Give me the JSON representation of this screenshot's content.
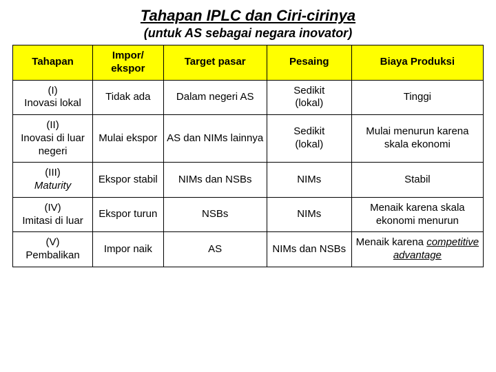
{
  "title": "Tahapan IPLC dan Ciri-cirinya",
  "subtitle": "(untuk AS sebagai negara inovator)",
  "table": {
    "header_bg": "#ffff00",
    "col_widths_pct": [
      17,
      15,
      22,
      18,
      28
    ],
    "columns": [
      "Tahapan",
      "Impor/ ekspor",
      "Target pasar",
      "Pesaing",
      "Biaya Produksi"
    ],
    "rows": [
      {
        "stage_roman": "(I)",
        "stage_name": "Inovasi lokal",
        "impor_ekspor": "Tidak ada",
        "target": "Dalam negeri AS",
        "pesaing_line1": "Sedikit",
        "pesaing_line2": "(lokal)",
        "biaya": "Tinggi"
      },
      {
        "stage_roman": "(II)",
        "stage_name": "Inovasi di luar negeri",
        "impor_ekspor": "Mulai ekspor",
        "target": "AS dan NIMs lainnya",
        "pesaing_line1": "Sedikit",
        "pesaing_line2": "(lokal)",
        "biaya": "Mulai menurun karena skala ekonomi"
      },
      {
        "stage_roman": "(III)",
        "stage_name_italic": "Maturity",
        "impor_ekspor": "Ekspor stabil",
        "target": "NIMs dan NSBs",
        "pesaing": "NIMs",
        "biaya": "Stabil"
      },
      {
        "stage_roman": "(IV)",
        "stage_name": "Imitasi di luar",
        "impor_ekspor": "Ekspor turun",
        "target": "NSBs",
        "pesaing": "NIMs",
        "biaya": "Menaik karena skala ekonomi menurun"
      },
      {
        "stage_roman": "(V)",
        "stage_name": "Pembalikan",
        "impor_ekspor": "Impor naik",
        "target": "AS",
        "pesaing": "NIMs dan NSBs",
        "biaya_prefix": "Menaik karena ",
        "biaya_em": "competitive advantage"
      }
    ]
  }
}
